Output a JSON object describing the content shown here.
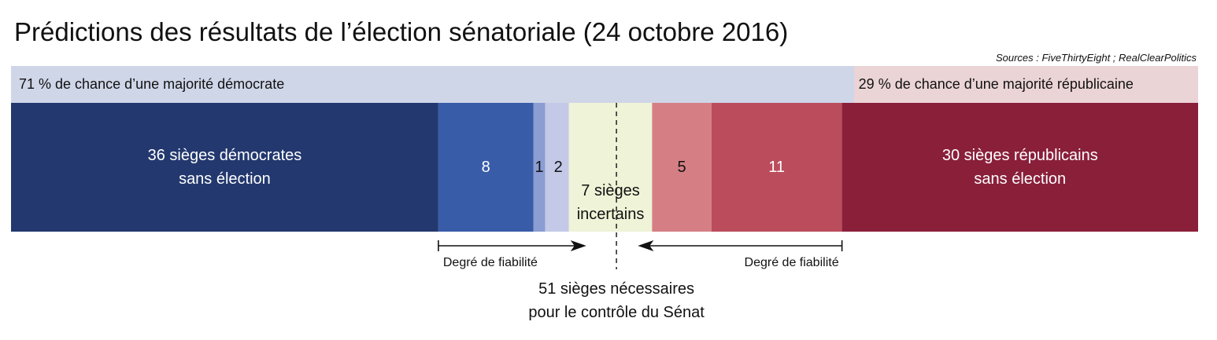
{
  "header": {
    "title": "Prédictions des résultats de l’élection sénatoriale (24 octobre 2016)",
    "sources": "Sources : FiveThirtyEight ; RealClearPolitics"
  },
  "probability": {
    "dem_text": "71 % de chance d’une majorité démocrate",
    "rep_text": "29 % de chance d’une majorité républicaine",
    "dem_value": 71,
    "rep_value": 29,
    "dem_color": "#cfd6e8",
    "rep_color": "#ebd4d6"
  },
  "chart_data": {
    "type": "bar",
    "orientation": "horizontal-stacked",
    "total": 100,
    "threshold": 51,
    "segments": [
      {
        "category": "dem-safe",
        "value": 36,
        "label_lines": [
          "36 sièges démocrates",
          "sans élection"
        ],
        "color": "#23386e",
        "text": "light"
      },
      {
        "category": "dem-likely",
        "value": 8,
        "label_lines": [
          "8"
        ],
        "color": "#395ca8",
        "text": "light"
      },
      {
        "category": "dem-lean",
        "value": 1,
        "label_lines": [
          "1"
        ],
        "color": "#8b9dd2",
        "text": "dark"
      },
      {
        "category": "dem-tilt",
        "value": 2,
        "label_lines": [
          "2"
        ],
        "color": "#c4c9e7",
        "text": "dark"
      },
      {
        "category": "uncertain",
        "value": 7,
        "label_lines": [
          "7 sièges",
          "incertains"
        ],
        "color": "#eff3d7",
        "text": "dark"
      },
      {
        "category": "rep-lean",
        "value": 5,
        "label_lines": [
          "5"
        ],
        "color": "#d57f85",
        "text": "dark"
      },
      {
        "category": "rep-likely",
        "value": 11,
        "label_lines": [
          "11"
        ],
        "color": "#ba4c5c",
        "text": "light"
      },
      {
        "category": "rep-safe",
        "value": 30,
        "label_lines": [
          "30 sièges républicains",
          "sans élection"
        ],
        "color": "#8a1f3a",
        "text": "light"
      }
    ],
    "annotations": {
      "reliability_left": "Degré de fiabilité",
      "reliability_right": "Degré de fiabilité",
      "threshold_lines": [
        "51 sièges nécessaires",
        "pour le contrôle du Sénat"
      ]
    }
  }
}
